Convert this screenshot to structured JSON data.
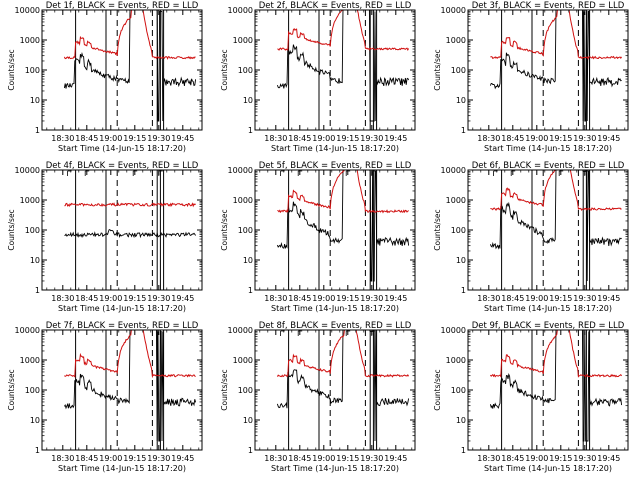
{
  "chart_data": {
    "type": "line",
    "layout": "3x3 grid of small multiples",
    "yscale": "log",
    "ylim": [
      1,
      10000
    ],
    "y_ticks": [
      1,
      10,
      100,
      1000,
      10000
    ],
    "y_tick_labels": [
      "1",
      "10",
      "100",
      "1000",
      "10000"
    ],
    "ylabel": "Counts/sec",
    "xlabel": "Start Time (14-Jun-15 18:17:20)",
    "x_tick_labels": [
      "18:30",
      "18:45",
      "19:00",
      "19:15",
      "19:30",
      "19:45"
    ],
    "x_tick_minutes": [
      30,
      45,
      60,
      75,
      90,
      105
    ],
    "xlim_minutes": [
      17,
      117
    ],
    "colors": {
      "events": "#000000",
      "lld": "#d01010"
    },
    "panels": [
      {
        "title": "Det 1f, BLACK = Events, RED = LLD",
        "flare": 1,
        "lld_base": 260,
        "ev_base": 30,
        "ev_peak": 180,
        "ev_flat": false,
        "red_flat": false,
        "top_marks": false
      },
      {
        "title": "Det 2f, BLACK = Events, RED = LLD",
        "flare": 1,
        "lld_base": 500,
        "ev_base": 30,
        "ev_peak": 400,
        "ev_flat": false,
        "red_flat": false,
        "top_marks": false
      },
      {
        "title": "Det 3f, BLACK = Events, RED = LLD",
        "flare": 1,
        "lld_base": 260,
        "ev_base": 30,
        "ev_peak": 180,
        "ev_flat": false,
        "red_flat": false,
        "top_marks": false
      },
      {
        "title": "Det 4f, BLACK = Events, RED = LLD",
        "flare": 0,
        "lld_base": 700,
        "ev_base": 70,
        "ev_peak": 80,
        "ev_flat": true,
        "red_flat": true,
        "top_marks": true
      },
      {
        "title": "Det 5f, BLACK = Events, RED = LLD",
        "flare": 1,
        "lld_base": 420,
        "ev_base": 30,
        "ev_peak": 500,
        "ev_flat": false,
        "red_flat": false,
        "top_marks": true
      },
      {
        "title": "Det 6f, BLACK = Events, RED = LLD",
        "flare": 1,
        "lld_base": 500,
        "ev_base": 30,
        "ev_peak": 500,
        "ev_flat": false,
        "red_flat": false,
        "top_marks": true
      },
      {
        "title": "Det 7f, BLACK = Events, RED = LLD",
        "flare": 1,
        "lld_base": 300,
        "ev_base": 30,
        "ev_peak": 180,
        "ev_flat": false,
        "red_flat": false,
        "top_marks": false
      },
      {
        "title": "Det 8f, BLACK = Events, RED = LLD",
        "flare": 1,
        "lld_base": 300,
        "ev_base": 30,
        "ev_peak": 300,
        "ev_flat": false,
        "red_flat": false,
        "top_marks": true
      },
      {
        "title": "Det 9f, BLACK = Events, RED = LLD",
        "flare": 1,
        "lld_base": 300,
        "ev_base": 30,
        "ev_peak": 180,
        "ev_flat": false,
        "red_flat": false,
        "top_marks": false
      }
    ],
    "markers": {
      "solid_minutes": [
        38,
        57,
        89,
        91,
        93
      ],
      "dashed_minutes": [
        64,
        86
      ]
    }
  }
}
